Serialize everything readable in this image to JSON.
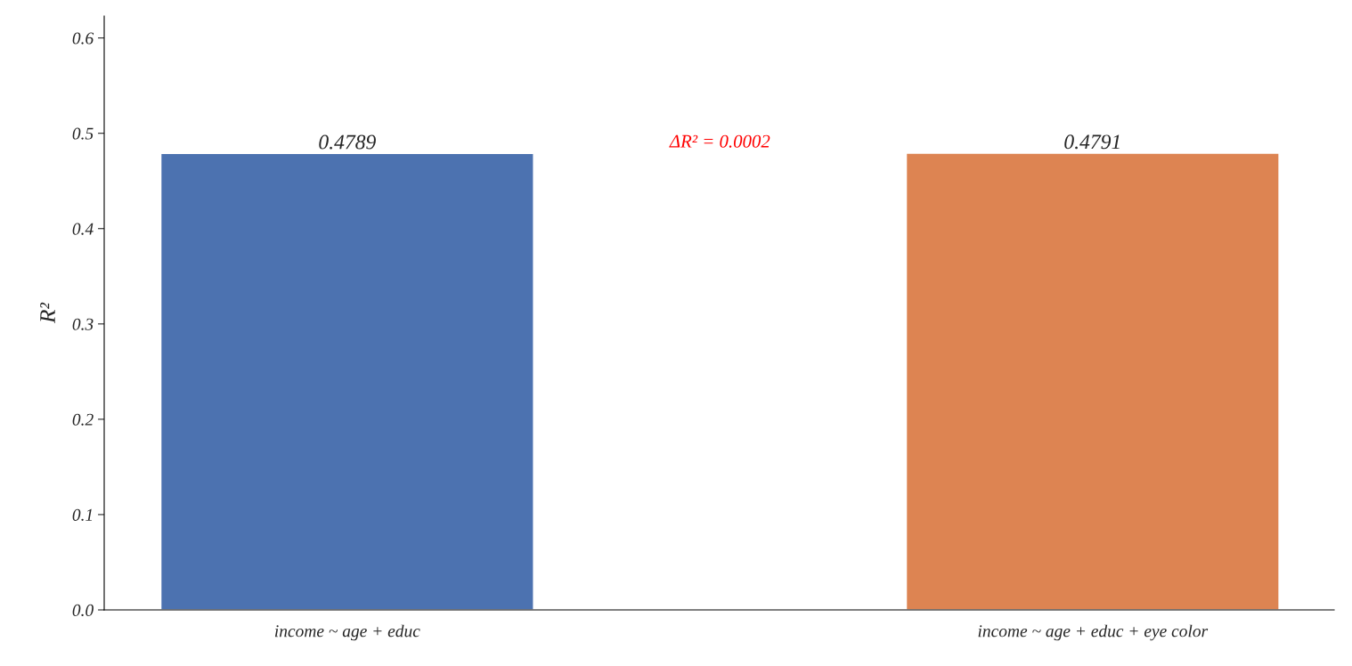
{
  "chart_data": {
    "type": "bar",
    "ylabel": "R²",
    "categories": [
      "income ~ age + educ",
      "income ~ age + educ + eye color"
    ],
    "values": [
      0.4789,
      0.4791
    ],
    "colors": [
      "#4c72b0",
      "#dd8452"
    ],
    "ylim": [
      0,
      0.623
    ],
    "yticks": [
      {
        "value": 0,
        "label": "0.0"
      },
      0.1,
      0.2,
      0.3,
      0.4,
      0.5,
      0.6
    ],
    "data_labels": true,
    "grid": false,
    "legend": false,
    "annotations": [
      "ΔR² = 0.0002"
    ]
  }
}
